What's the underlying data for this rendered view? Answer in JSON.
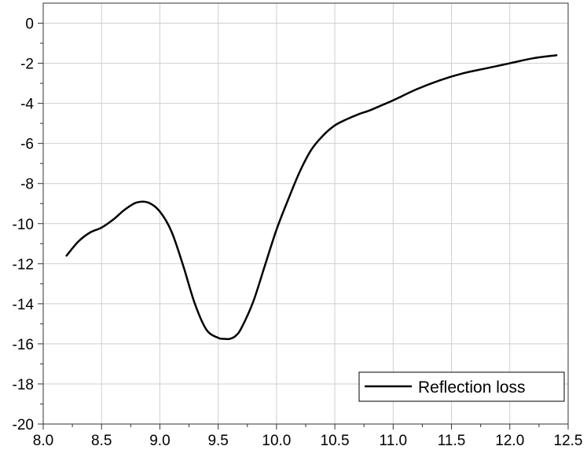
{
  "chart_data": {
    "type": "line",
    "title": "",
    "xlabel": "",
    "ylabel": "",
    "xlim": [
      8.0,
      12.5
    ],
    "ylim": [
      -20,
      1
    ],
    "xticks": [
      8.0,
      8.5,
      9.0,
      9.5,
      10.0,
      10.5,
      11.0,
      11.5,
      12.0,
      12.5
    ],
    "xtick_labels": [
      "8.0",
      "8.5",
      "9.0",
      "9.5",
      "10.0",
      "10.5",
      "11.0",
      "11.5",
      "12.0",
      "12.5"
    ],
    "yticks": [
      0,
      -2,
      -4,
      -6,
      -8,
      -10,
      -12,
      -14,
      -16,
      -18,
      -20
    ],
    "ytick_labels": [
      "0",
      "-2",
      "-4",
      "-6",
      "-8",
      "-10",
      "-12",
      "-14",
      "-16",
      "-18",
      "-20"
    ],
    "grid": true,
    "legend_position": "bottom-right",
    "series": [
      {
        "name": "Reflection loss",
        "color": "#000000",
        "x": [
          8.2,
          8.3,
          8.4,
          8.5,
          8.6,
          8.7,
          8.8,
          8.9,
          9.0,
          9.1,
          9.2,
          9.3,
          9.4,
          9.5,
          9.55,
          9.6,
          9.65,
          9.7,
          9.8,
          9.9,
          10.0,
          10.1,
          10.2,
          10.3,
          10.4,
          10.5,
          10.6,
          10.7,
          10.8,
          10.9,
          11.0,
          11.2,
          11.4,
          11.6,
          11.8,
          12.0,
          12.2,
          12.4
        ],
        "y": [
          -11.6,
          -10.9,
          -10.45,
          -10.2,
          -9.8,
          -9.3,
          -8.95,
          -8.95,
          -9.4,
          -10.4,
          -12.1,
          -14.0,
          -15.3,
          -15.7,
          -15.75,
          -15.75,
          -15.6,
          -15.2,
          -13.9,
          -12.1,
          -10.3,
          -8.8,
          -7.4,
          -6.3,
          -5.6,
          -5.1,
          -4.8,
          -4.55,
          -4.35,
          -4.1,
          -3.85,
          -3.3,
          -2.85,
          -2.5,
          -2.25,
          -2.0,
          -1.75,
          -1.6
        ]
      }
    ]
  }
}
